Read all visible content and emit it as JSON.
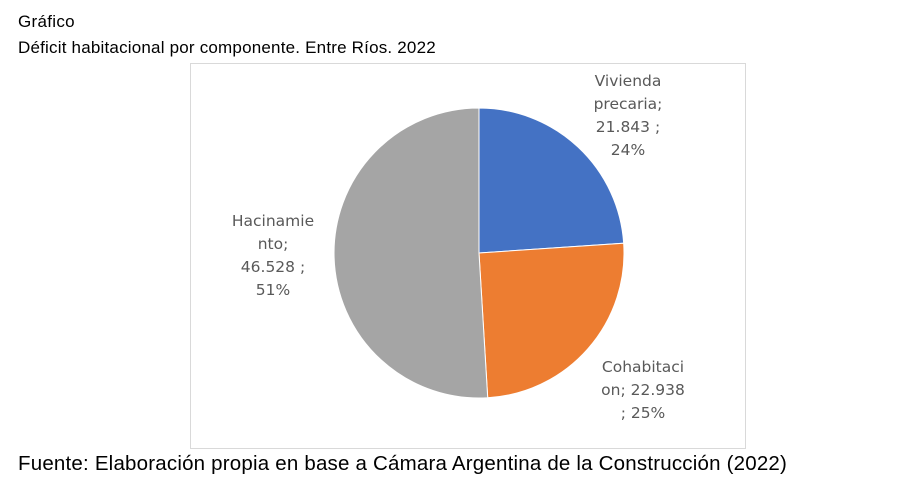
{
  "heading": {
    "line1": "Gráfico",
    "line2": "Déficit habitacional por componente. Entre Ríos. 2022"
  },
  "source": "Fuente: Elaboración propia en base a Cámara Argentina de la Construcción (2022)",
  "chart_data": {
    "type": "pie",
    "title": "",
    "start_angle_deg": 0,
    "direction": "clockwise",
    "slices": [
      {
        "category": "Vivienda precaria",
        "value": 21843,
        "percent": 24,
        "color": "#4472C4",
        "label_lines": [
          "Vivienda",
          "precaria;",
          "21.843 ;",
          "24%"
        ]
      },
      {
        "category": "Cohabitacion",
        "value": 22938,
        "percent": 25,
        "color": "#ED7D31",
        "label_lines": [
          "Cohabitaci",
          "on;  22.938",
          "; 25%"
        ]
      },
      {
        "category": "Hacinamiento",
        "value": 46528,
        "percent": 51,
        "color": "#A5A5A5",
        "label_lines": [
          "Hacinamie",
          "nto;",
          "46.528 ;",
          "51%"
        ]
      }
    ]
  }
}
